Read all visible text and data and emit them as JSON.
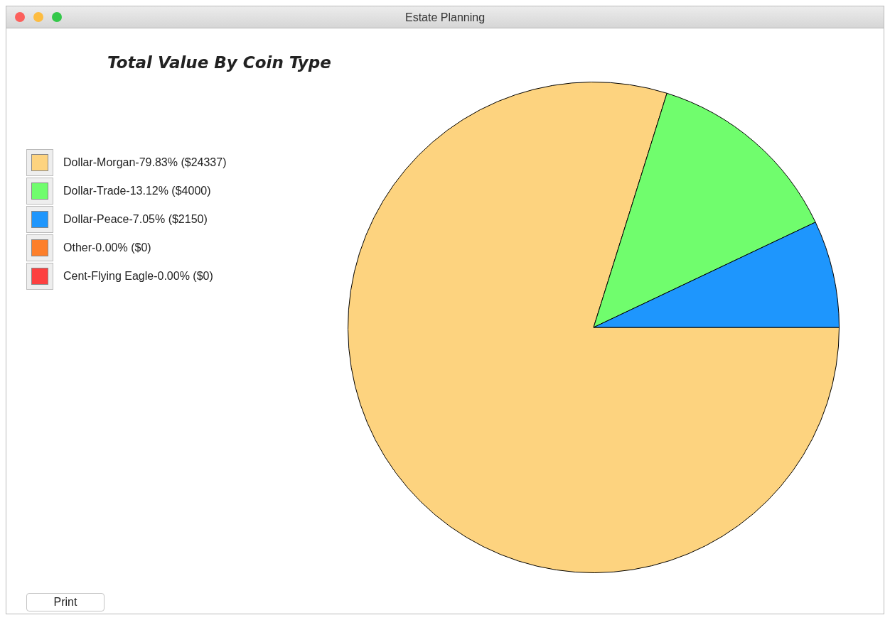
{
  "chart_data": {
    "type": "pie",
    "title": "Total Value By Coin Type",
    "categories": [
      "Dollar-Morgan-79.83% ($24337)",
      "Dollar-Trade-13.12% ($4000)",
      "Dollar-Peace-7.05% ($2150)",
      "Other-0.00% ($0)",
      "Cent-Flying Eagle-0.00% ($0)"
    ],
    "values": [
      24337,
      4000,
      2150,
      0,
      0
    ],
    "colors": [
      "#fdd37f",
      "#70fd6d",
      "#1e96fd",
      "#fd7f2a",
      "#fd4040"
    ],
    "legend": "left",
    "annotations": [
      "Estate Planning",
      "Print"
    ]
  }
}
